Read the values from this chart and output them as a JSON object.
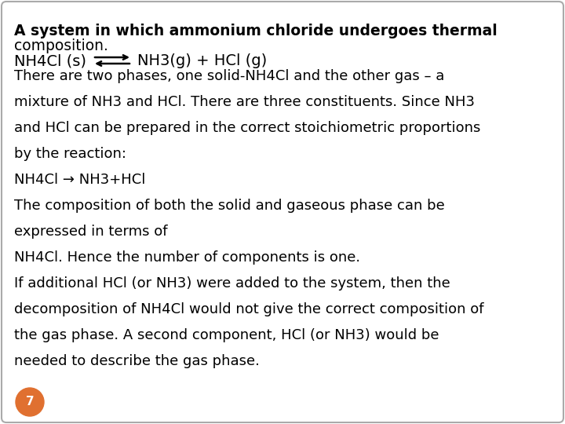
{
  "background_color": "#ffffff",
  "border_color": "#aaaaaa",
  "title_line1": "A system in which ammonium chloride undergoes thermal",
  "title_line2": "composition.",
  "title_fontsize": 13.5,
  "equation_left": "NH4Cl (s)",
  "equation_right": "NH3(g) + HCl (g)",
  "body_text": [
    "There are two phases, one solid-NH4Cl and the other gas – a",
    "mixture of NH3 and HCl. There are three constituents. Since NH3",
    "and HCl can be prepared in the correct stoichiometric proportions",
    "by the reaction:",
    "NH4Cl → NH3+HCl",
    "The composition of both the solid and gaseous phase can be",
    "expressed in terms of",
    "NH4Cl. Hence the number of components is one.",
    "If additional HCl (or NH3) were added to the system, then the",
    "decomposition of NH4Cl would not give the correct composition of",
    "the gas phase. A second component, HCl (or NH3) would be",
    "needed to describe the gas phase."
  ],
  "body_fontsize": 13.0,
  "page_number": "7",
  "page_num_color": "#e07030",
  "page_num_fontsize": 11
}
